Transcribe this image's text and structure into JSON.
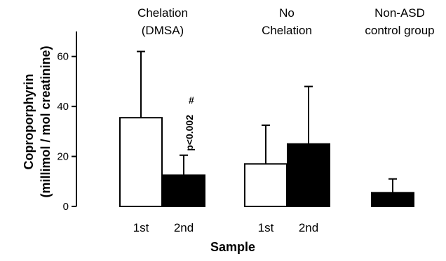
{
  "chart_data": {
    "type": "bar",
    "xlabel": "Sample",
    "ylabel_line1": "Coproporphyrin",
    "ylabel_line2": "(millimol / mol creatinine)",
    "ylim": [
      0,
      70
    ],
    "yticks": [
      0,
      20,
      40,
      60
    ],
    "grid": false,
    "legend": "none",
    "groups": [
      {
        "label_lines": [
          "Chelation",
          "(DMSA)"
        ]
      },
      {
        "label_lines": [
          "No",
          "Chelation"
        ]
      },
      {
        "label_lines": [
          "Non-ASD",
          "control group"
        ]
      }
    ],
    "bars": [
      {
        "group": 0,
        "category": "1st",
        "value": 35.5,
        "error": 26.5,
        "fill": "#ffffff"
      },
      {
        "group": 0,
        "category": "2nd",
        "value": 12.5,
        "error": 8.0,
        "fill": "#000000"
      },
      {
        "group": 1,
        "category": "1st",
        "value": 17.0,
        "error": 15.5,
        "fill": "#ffffff"
      },
      {
        "group": 1,
        "category": "2nd",
        "value": 25.0,
        "error": 23.0,
        "fill": "#000000"
      },
      {
        "group": 2,
        "category": "",
        "value": 5.5,
        "error": 5.5,
        "fill": "#000000"
      }
    ],
    "annotations": [
      {
        "bar": 1,
        "text": "p<0.002",
        "marker": "#"
      }
    ]
  }
}
